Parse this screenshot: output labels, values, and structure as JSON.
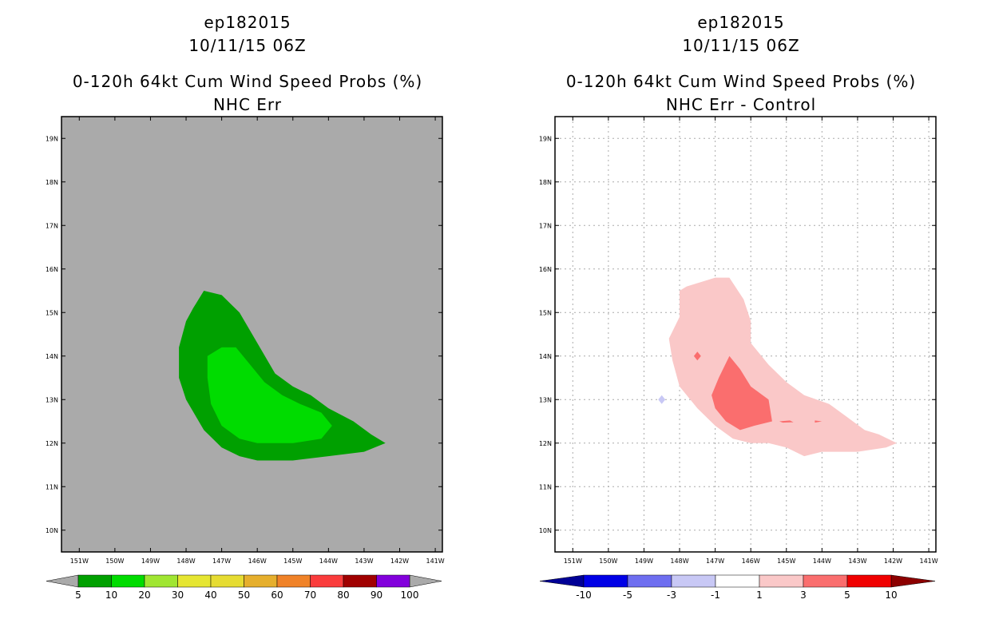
{
  "chart_data": [
    {
      "type": "contour",
      "storm_id": "ep182015",
      "datetime": "10/11/15 06Z",
      "title": "0-120h 64kt Cum Wind Speed Probs (%)",
      "subtitle": "NHC Err",
      "x_ticks": [
        "151W",
        "150W",
        "149W",
        "148W",
        "147W",
        "146W",
        "145W",
        "144W",
        "143W",
        "142W",
        "141W"
      ],
      "y_ticks": [
        "19N",
        "18N",
        "17N",
        "16N",
        "15N",
        "14N",
        "13N",
        "12N",
        "11N",
        "10N"
      ],
      "xlim": [
        -151.5,
        -140.8
      ],
      "ylim": [
        9.5,
        19.5
      ],
      "background_color": "#aaaaaa",
      "colorbar": {
        "labels": [
          "5",
          "10",
          "20",
          "30",
          "40",
          "50",
          "60",
          "70",
          "80",
          "90",
          "100"
        ],
        "colors": [
          "#00a000",
          "#00dc00",
          "#a0e632",
          "#e6e632",
          "#e6dc32",
          "#e6af2d",
          "#f08228",
          "#fa3c3c",
          "#a00000",
          "#8200dc"
        ],
        "below_color": "#aaaaaa",
        "above_color": "#aaaaaa"
      },
      "contours": [
        {
          "level": "5-10",
          "color": "#00a000",
          "points": [
            [
              -147.5,
              15.5
            ],
            [
              -147.0,
              15.4
            ],
            [
              -146.5,
              15.0
            ],
            [
              -146.0,
              14.3
            ],
            [
              -145.5,
              13.6
            ],
            [
              -145.0,
              13.3
            ],
            [
              -144.5,
              13.1
            ],
            [
              -144.0,
              12.8
            ],
            [
              -143.3,
              12.5
            ],
            [
              -142.8,
              12.2
            ],
            [
              -142.4,
              12.0
            ],
            [
              -143.0,
              11.8
            ],
            [
              -144.0,
              11.7
            ],
            [
              -145.0,
              11.6
            ],
            [
              -145.5,
              11.6
            ],
            [
              -146.0,
              11.6
            ],
            [
              -146.5,
              11.7
            ],
            [
              -147.0,
              11.9
            ],
            [
              -147.5,
              12.3
            ],
            [
              -148.0,
              13.0
            ],
            [
              -148.2,
              13.5
            ],
            [
              -148.2,
              14.2
            ],
            [
              -148.0,
              14.8
            ],
            [
              -147.8,
              15.1
            ]
          ]
        },
        {
          "level": "10-20",
          "color": "#00dc00",
          "points": [
            [
              -147.0,
              14.2
            ],
            [
              -146.6,
              14.2
            ],
            [
              -146.2,
              13.8
            ],
            [
              -145.8,
              13.4
            ],
            [
              -145.3,
              13.1
            ],
            [
              -144.8,
              12.9
            ],
            [
              -144.2,
              12.7
            ],
            [
              -143.9,
              12.4
            ],
            [
              -144.2,
              12.1
            ],
            [
              -145.0,
              12.0
            ],
            [
              -145.5,
              12.0
            ],
            [
              -146.0,
              12.0
            ],
            [
              -146.5,
              12.1
            ],
            [
              -147.0,
              12.4
            ],
            [
              -147.3,
              12.9
            ],
            [
              -147.4,
              13.5
            ],
            [
              -147.4,
              14.0
            ]
          ]
        }
      ]
    },
    {
      "type": "contour",
      "storm_id": "ep182015",
      "datetime": "10/11/15 06Z",
      "title": "0-120h 64kt Cum Wind Speed Probs (%)",
      "subtitle": "NHC Err - Control",
      "x_ticks": [
        "151W",
        "150W",
        "149W",
        "148W",
        "147W",
        "146W",
        "145W",
        "144W",
        "143W",
        "142W",
        "141W"
      ],
      "y_ticks": [
        "19N",
        "18N",
        "17N",
        "16N",
        "15N",
        "14N",
        "13N",
        "12N",
        "11N",
        "10N"
      ],
      "xlim": [
        -151.5,
        -140.8
      ],
      "ylim": [
        9.5,
        19.5
      ],
      "background_color": "#ffffff",
      "grid": true,
      "colorbar": {
        "labels": [
          "-10",
          "-5",
          "-3",
          "-1",
          "1",
          "3",
          "5",
          "10"
        ],
        "colors": [
          "#0000e6",
          "#6e6ef0",
          "#c8c8f5",
          "#ffffff",
          "#fac8c8",
          "#fa6e6e",
          "#f00000"
        ],
        "below_color": "#000096",
        "above_color": "#8c0000"
      },
      "contours": [
        {
          "level": "1-3",
          "color": "#fac8c8",
          "points": [
            [
              -147.8,
              15.6
            ],
            [
              -147.0,
              15.8
            ],
            [
              -146.6,
              15.8
            ],
            [
              -146.2,
              15.3
            ],
            [
              -146.0,
              14.8
            ],
            [
              -146.0,
              14.3
            ],
            [
              -145.5,
              13.8
            ],
            [
              -145.0,
              13.4
            ],
            [
              -144.5,
              13.1
            ],
            [
              -143.8,
              12.9
            ],
            [
              -143.3,
              12.6
            ],
            [
              -142.8,
              12.3
            ],
            [
              -142.4,
              12.2
            ],
            [
              -141.9,
              12.0
            ],
            [
              -142.2,
              11.9
            ],
            [
              -143.0,
              11.8
            ],
            [
              -144.0,
              11.8
            ],
            [
              -144.5,
              11.7
            ],
            [
              -145.0,
              11.9
            ],
            [
              -145.5,
              12.0
            ],
            [
              -146.0,
              12.0
            ],
            [
              -146.5,
              12.1
            ],
            [
              -147.0,
              12.4
            ],
            [
              -147.5,
              12.8
            ],
            [
              -148.0,
              13.3
            ],
            [
              -148.2,
              13.9
            ],
            [
              -148.3,
              14.4
            ],
            [
              -148.0,
              14.9
            ],
            [
              -148.0,
              15.5
            ]
          ]
        },
        {
          "level": "3-5",
          "color": "#fa6e6e",
          "points": [
            [
              -146.6,
              14.0
            ],
            [
              -146.3,
              13.7
            ],
            [
              -146.0,
              13.3
            ],
            [
              -145.5,
              13.0
            ],
            [
              -145.4,
              12.5
            ],
            [
              -145.9,
              12.4
            ],
            [
              -146.3,
              12.3
            ],
            [
              -146.7,
              12.5
            ],
            [
              -147.0,
              12.8
            ],
            [
              -147.1,
              13.1
            ],
            [
              -146.9,
              13.5
            ]
          ]
        },
        {
          "level": "3-5",
          "color": "#fa6e6e",
          "points": [
            [
              -147.5,
              14.1
            ],
            [
              -147.4,
              14.0
            ],
            [
              -147.5,
              13.9
            ],
            [
              -147.6,
              14.0
            ]
          ]
        },
        {
          "level": "-3--1",
          "color": "#c8c8f5",
          "points": [
            [
              -148.5,
              13.1
            ],
            [
              -148.4,
              13.0
            ],
            [
              -148.5,
              12.9
            ],
            [
              -148.6,
              13.0
            ]
          ]
        },
        {
          "level": "3-5",
          "color": "#fa6e6e",
          "points": [
            [
              -145.2,
              12.5
            ],
            [
              -144.9,
              12.52
            ],
            [
              -144.8,
              12.48
            ],
            [
              -145.1,
              12.47
            ]
          ]
        },
        {
          "level": "3-5",
          "color": "#fa6e6e",
          "points": [
            [
              -144.2,
              12.52
            ],
            [
              -144.0,
              12.5
            ],
            [
              -144.2,
              12.47
            ]
          ]
        }
      ]
    }
  ]
}
